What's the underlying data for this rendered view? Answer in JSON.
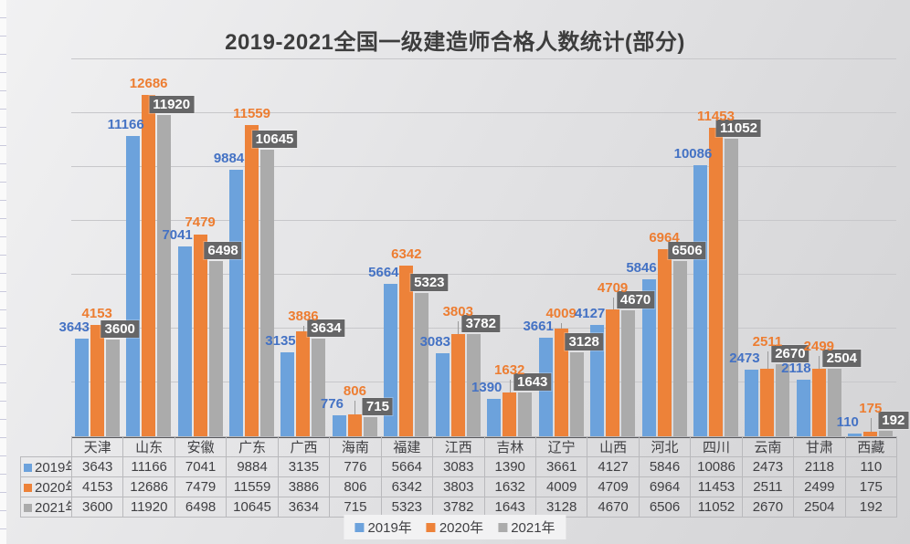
{
  "title": "2019-2021全国一级建造师合格人数统计(部分)",
  "colors": {
    "bar_2019": "#6CA2DC",
    "bar_2020": "#ED8239",
    "bar_2021": "#ABABAB",
    "label_2019": "#4472C4",
    "label_2020": "#ED7D31",
    "label_2021_box_bg": "#666667",
    "label_2021_box_text": "#FFFFFF",
    "gridline": "#C7C7CA",
    "axis_line": "#57575B",
    "title_text": "#3D3D3D"
  },
  "chart_data": {
    "type": "bar",
    "title": "2019-2021全国一级建造师合格人数统计(部分)",
    "categories": [
      "天津",
      "山东",
      "安徽",
      "广东",
      "广西",
      "海南",
      "福建",
      "江西",
      "吉林",
      "辽宁",
      "山西",
      "河北",
      "四川",
      "云南",
      "甘肃",
      "西藏"
    ],
    "series": [
      {
        "name": "2019年",
        "color": "#6CA2DC",
        "label_color": "#4472C4",
        "label_style": "text",
        "values": [
          3643,
          11166,
          7041,
          9884,
          3135,
          776,
          5664,
          3083,
          1390,
          3661,
          4127,
          5846,
          10086,
          2473,
          2118,
          110
        ]
      },
      {
        "name": "2020年",
        "color": "#ED8239",
        "label_color": "#ED7D31",
        "label_style": "text",
        "values": [
          4153,
          12686,
          7479,
          11559,
          3886,
          806,
          6342,
          3803,
          1632,
          4009,
          4709,
          6964,
          11453,
          2511,
          2499,
          175
        ]
      },
      {
        "name": "2021年",
        "color": "#ABABAB",
        "label_color": "#FFFFFF",
        "label_style": "box",
        "values": [
          3600,
          11920,
          6498,
          10645,
          3634,
          715,
          5323,
          3782,
          1643,
          3128,
          4670,
          6506,
          11052,
          2670,
          2504,
          192
        ]
      }
    ],
    "xlabel": "",
    "ylabel": "",
    "ylim": [
      0,
      14000
    ],
    "gridline_step": 2000,
    "grid": true,
    "y_axis_labels_shown": false,
    "data_labels_shown": true,
    "data_table_shown": true,
    "legend_position": "bottom"
  },
  "legend": {
    "items": [
      {
        "label": "2019年",
        "color": "#6CA2DC"
      },
      {
        "label": "2020年",
        "color": "#ED8239"
      },
      {
        "label": "2021年",
        "color": "#ABABAB"
      }
    ]
  }
}
